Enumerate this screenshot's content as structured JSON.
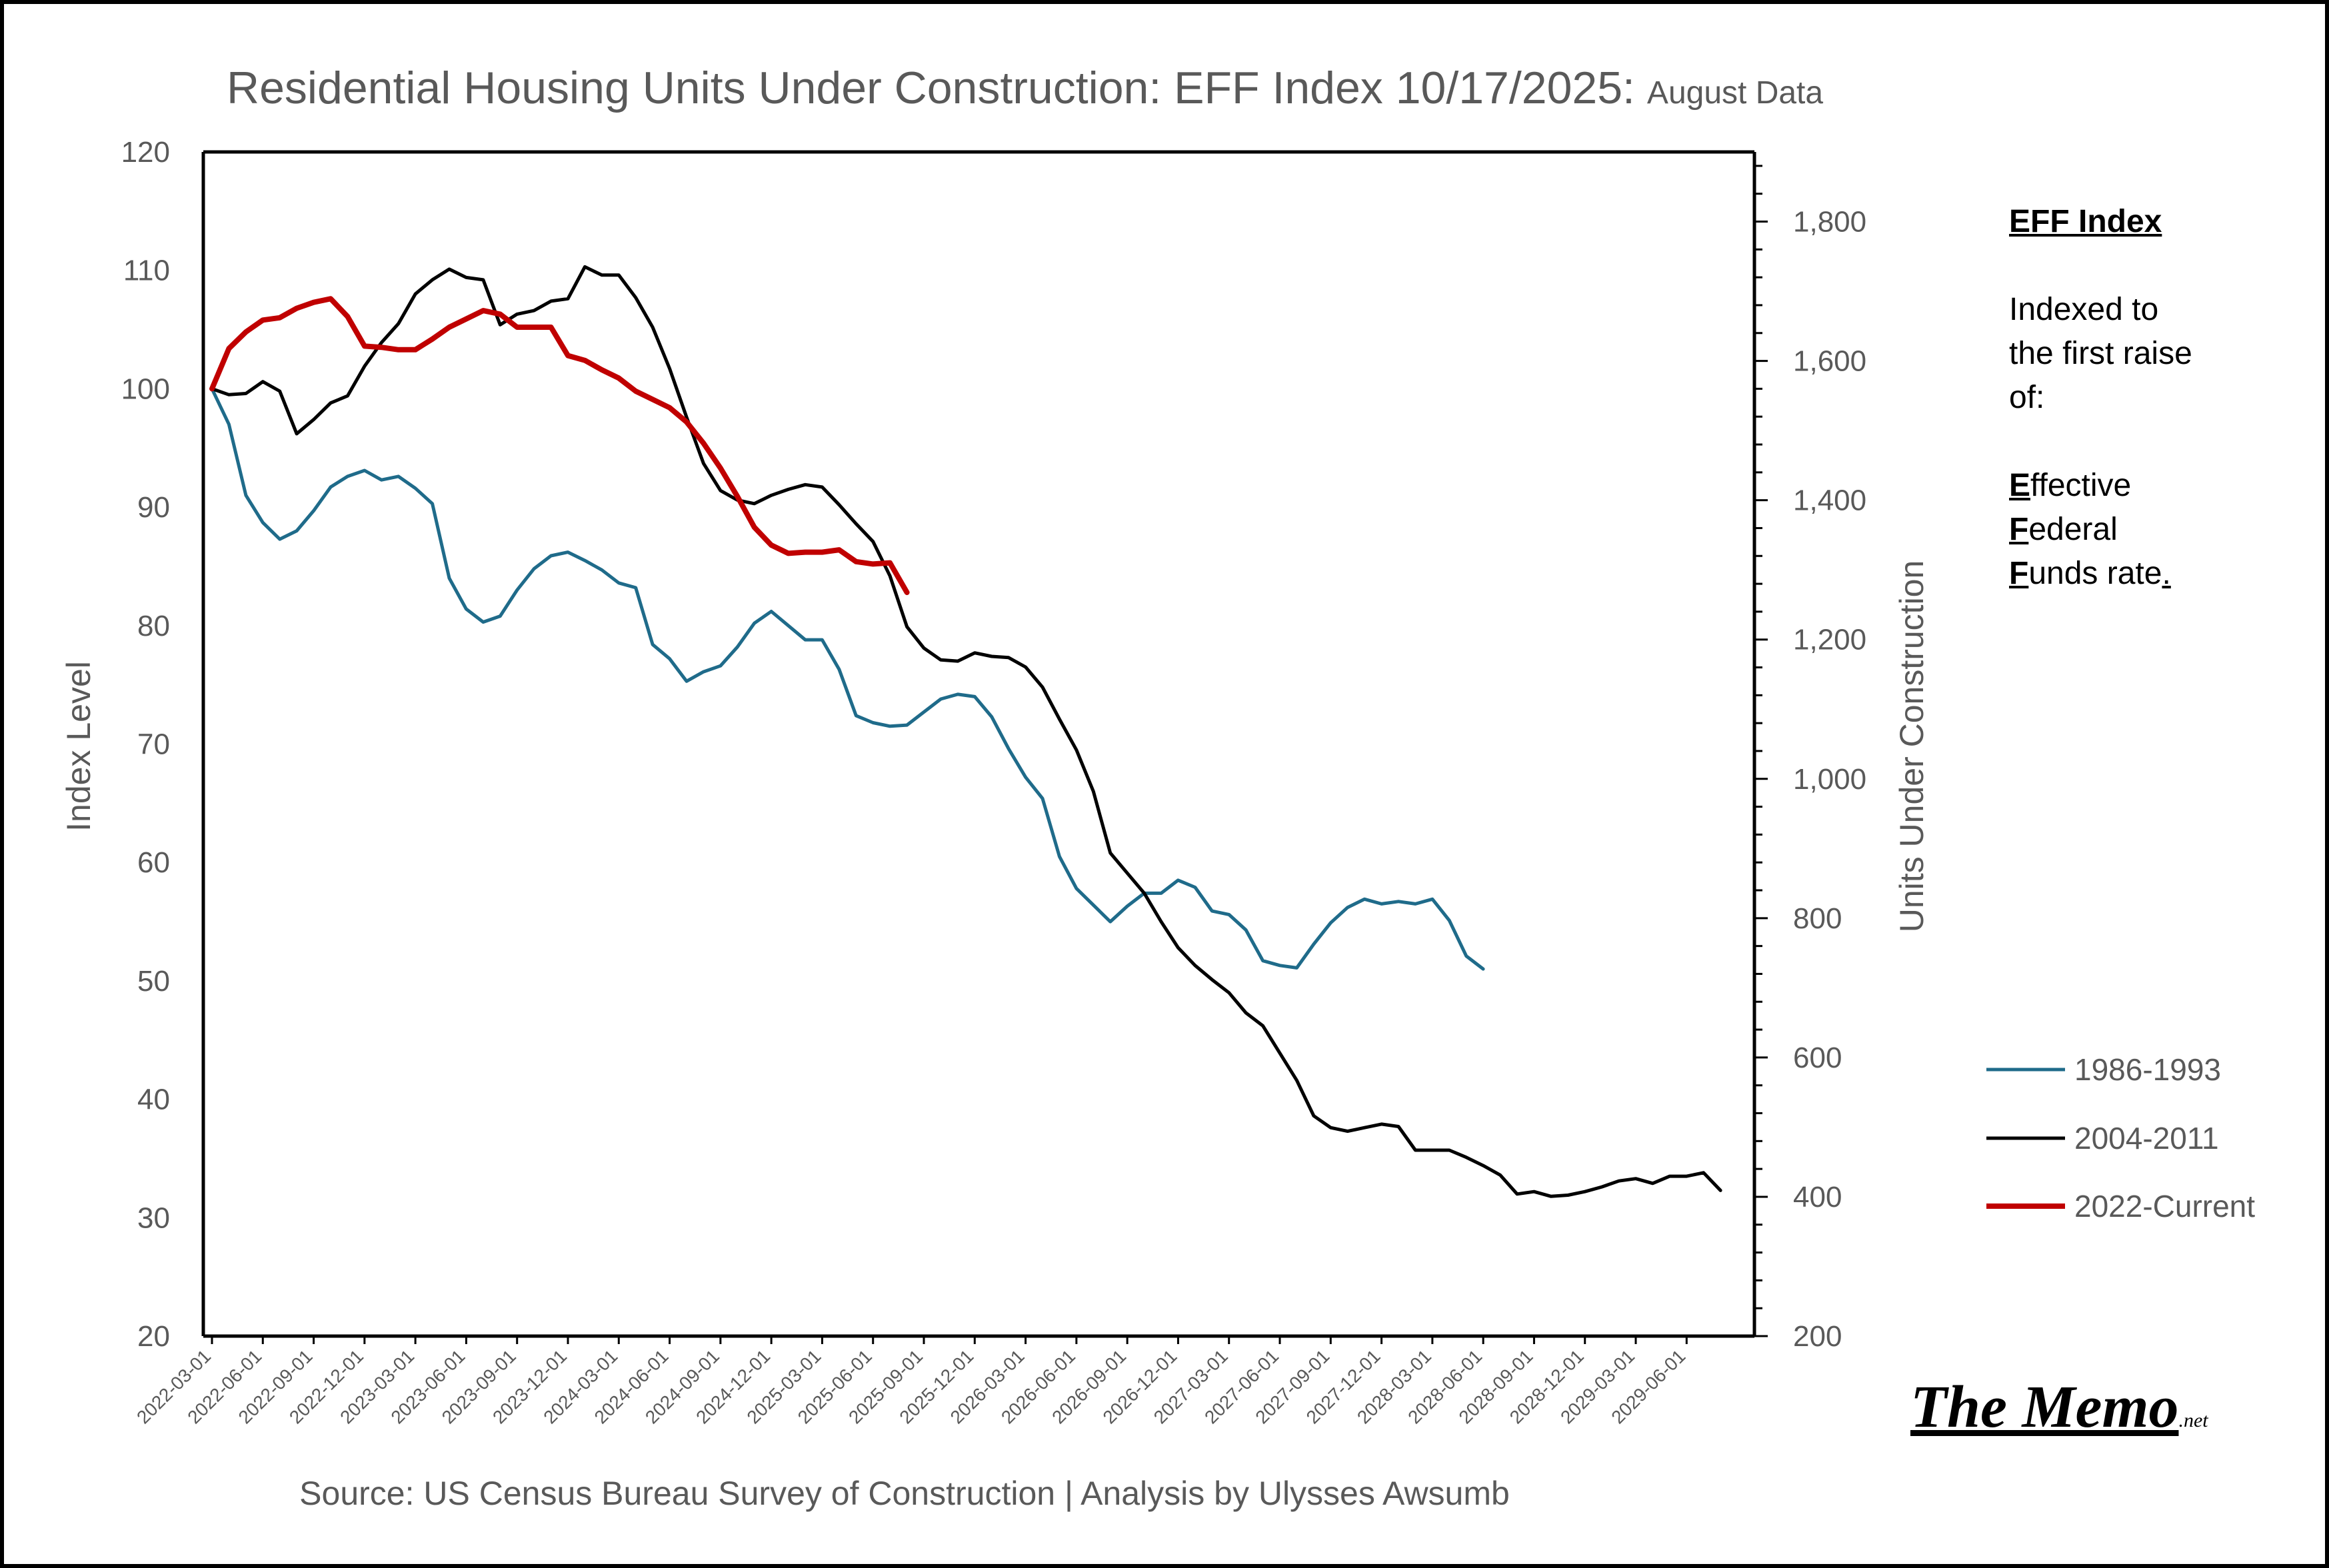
{
  "chart_data": {
    "type": "line",
    "title": "Residential Housing Units Under Construction: EFF Index 10/17/2025:",
    "subtitle": "August Data",
    "ylabel": "Index Level",
    "y2label": "Units Under Construction",
    "ylim": [
      20,
      120
    ],
    "yticks": [
      20,
      30,
      40,
      50,
      60,
      70,
      80,
      90,
      100,
      110,
      120
    ],
    "y2lim": [
      200,
      1900
    ],
    "y2ticks": [
      "200",
      "400",
      "600",
      "800",
      "1,000",
      "1,200",
      "1,400",
      "1,600",
      "1,800"
    ],
    "y2tick_values": [
      200,
      400,
      600,
      800,
      1000,
      1200,
      1400,
      1600,
      1800
    ],
    "xticks": [
      "2022-03-01",
      "2022-06-01",
      "2022-09-01",
      "2022-12-01",
      "2023-03-01",
      "2023-06-01",
      "2023-09-01",
      "2023-12-01",
      "2024-03-01",
      "2024-06-01",
      "2024-09-01",
      "2024-12-01",
      "2025-03-01",
      "2025-06-01",
      "2025-09-01",
      "2025-12-01",
      "2026-03-01",
      "2026-06-01",
      "2026-09-01",
      "2026-12-01",
      "2027-03-01",
      "2027-06-01",
      "2027-09-01",
      "2027-12-01",
      "2028-03-01",
      "2028-06-01",
      "2028-09-01",
      "2028-12-01",
      "2029-03-01",
      "2029-06-01"
    ],
    "x_months": 92,
    "source": "Source: US Census Bureau Survey of Construction | Analysis by Ulysses Awsumb",
    "series": [
      {
        "name": "1986-1993",
        "color": "#1f6b8a",
        "width": 5,
        "values": [
          100,
          97,
          91,
          88.7,
          87.3,
          88,
          89.7,
          91.7,
          92.6,
          93.1,
          92.3,
          92.6,
          91.6,
          90.3,
          84,
          81.4,
          80.3,
          80.8,
          83,
          84.8,
          85.9,
          86.2,
          85.5,
          84.7,
          83.6,
          83.2,
          78.4,
          77.2,
          75.3,
          76.1,
          76.6,
          78.2,
          80.2,
          81.2,
          80,
          78.8,
          78.8,
          76.3,
          72.4,
          71.8,
          71.5,
          71.6,
          72.7,
          73.8,
          74.2,
          74,
          72.3,
          69.6,
          67.2,
          65.4,
          60.5,
          57.8,
          56.4,
          55,
          56.3,
          57.4,
          57.4,
          58.5,
          57.9,
          55.9,
          55.6,
          54.3,
          51.7,
          51.3,
          51.1,
          53.1,
          54.9,
          56.2,
          56.9,
          56.5,
          56.7,
          56.5,
          56.9,
          55.1,
          52.1,
          51
        ]
      },
      {
        "name": "2004-2011",
        "color": "#000000",
        "width": 5,
        "values": [
          100,
          99.5,
          99.6,
          100.6,
          99.8,
          96.2,
          97.4,
          98.8,
          99.4,
          101.9,
          103.9,
          105.5,
          108,
          109.2,
          110.1,
          109.4,
          109.2,
          105.4,
          106.3,
          106.6,
          107.4,
          107.6,
          110.3,
          109.6,
          109.6,
          107.7,
          105.2,
          101.7,
          97.6,
          93.7,
          91.4,
          90.6,
          90.3,
          91,
          91.5,
          91.9,
          91.7,
          90.2,
          88.6,
          87.1,
          84.2,
          79.9,
          78.1,
          77.1,
          77,
          77.7,
          77.4,
          77.3,
          76.5,
          74.8,
          72.1,
          69.5,
          66,
          60.8,
          59.1,
          57.4,
          55,
          52.8,
          51.3,
          50.1,
          49,
          47.3,
          46.2,
          43.9,
          41.6,
          38.6,
          37.6,
          37.3,
          37.6,
          37.9,
          37.7,
          35.7,
          35.7,
          35.7,
          35.1,
          34.4,
          33.6,
          32,
          32.2,
          31.8,
          31.9,
          32.2,
          32.6,
          33.1,
          33.3,
          32.9,
          33.5,
          33.5,
          33.8,
          32.3
        ]
      },
      {
        "name": "2022-Current",
        "color": "#c00000",
        "width": 8,
        "values": [
          100,
          103.4,
          104.8,
          105.8,
          106,
          106.8,
          107.3,
          107.6,
          106.1,
          103.6,
          103.5,
          103.3,
          103.3,
          104.2,
          105.2,
          105.9,
          106.6,
          106.3,
          105.2,
          105.2,
          105.2,
          102.8,
          102.4,
          101.6,
          100.9,
          99.8,
          99.1,
          98.4,
          97.2,
          95.4,
          93.3,
          90.9,
          88.3,
          86.8,
          86.1,
          86.2,
          86.2,
          86.4,
          85.4,
          85.2,
          85.3,
          82.8
        ]
      }
    ]
  },
  "note": {
    "title": "EFF Index",
    "line1": "Indexed to",
    "line2": "the first raise",
    "line3": "of:",
    "e_letter": "E",
    "e_rest": "ffective",
    "f1_letter": "F",
    "f1_rest": "ederal",
    "f2_letter": "F",
    "f2_rest": "unds rate",
    "end_dot": "."
  },
  "logo": {
    "main": "The Memo",
    "suffix": ".net"
  }
}
